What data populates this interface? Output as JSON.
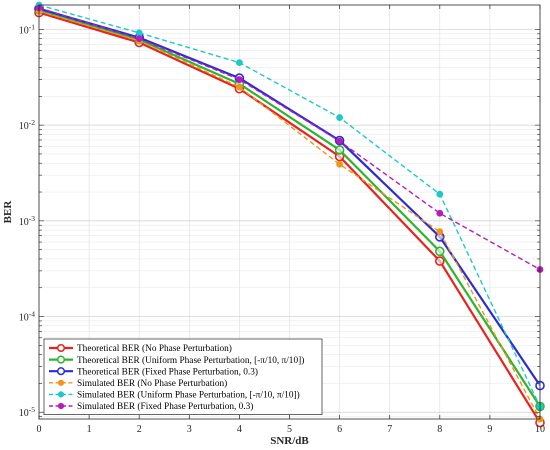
{
  "chart_data": {
    "type": "line",
    "xlabel": "SNR/dB",
    "ylabel": "BER",
    "x_scale": "linear",
    "y_scale": "log",
    "xlim": [
      0,
      10
    ],
    "ylim": [
      8.5e-06,
      0.18
    ],
    "x_ticks": [
      "0",
      "1",
      "2",
      "3",
      "4",
      "5",
      "6",
      "7",
      "8",
      "9",
      "10"
    ],
    "y_ticks": [
      {
        "value": 1e-05,
        "mantissa": "10",
        "exp": "-5"
      },
      {
        "value": 0.0001,
        "mantissa": "10",
        "exp": "-4"
      },
      {
        "value": 0.001,
        "mantissa": "10",
        "exp": "-3"
      },
      {
        "value": 0.01,
        "mantissa": "10",
        "exp": "-2"
      },
      {
        "value": 0.1,
        "mantissa": "10",
        "exp": "-1"
      }
    ],
    "grid": true,
    "legend_position": "bottom-left",
    "x": [
      0,
      2,
      4,
      6,
      8,
      10
    ],
    "series": [
      {
        "name": "Theoretical BER (No Phase Perturbation)",
        "values": [
          0.15,
          0.073,
          0.024,
          0.0047,
          0.00038,
          7.8e-06
        ],
        "color": "#e8221c",
        "dash": "solid",
        "marker": "circle"
      },
      {
        "name": "Theoretical BER (Uniform Phase Perturbation, [-π/10, π/10])",
        "values": [
          0.16,
          0.078,
          0.027,
          0.0055,
          0.00048,
          1.15e-05
        ],
        "color": "#2db52d",
        "dash": "solid",
        "marker": "circle"
      },
      {
        "name": "Theoretical BER (Fixed Phase Perturbation, 0.3)",
        "values": [
          0.165,
          0.082,
          0.031,
          0.0069,
          0.00068,
          1.9e-05
        ],
        "color": "#2b2bd4",
        "dash": "solid",
        "marker": "circle"
      },
      {
        "name": "Simulated BER (No Phase Perturbation)",
        "values": [
          0.155,
          0.076,
          0.025,
          0.0039,
          0.00077,
          8.5e-06
        ],
        "color": "#f0941e",
        "dash": "dashed",
        "marker": "circle"
      },
      {
        "name": "Simulated BER (Uniform Phase Perturbation, [-π/10, π/10])",
        "values": [
          0.18,
          0.092,
          0.045,
          0.012,
          0.0019,
          1.15e-05
        ],
        "color": "#1ec8c8",
        "dash": "dashed",
        "marker": "circle"
      },
      {
        "name": "Simulated BER (Fixed Phase Perturbation, 0.3)",
        "values": [
          0.168,
          0.08,
          0.03,
          0.0068,
          0.0012,
          0.00031
        ],
        "color": "#b51eb5",
        "dash": "dashed",
        "marker": "circle"
      }
    ]
  }
}
